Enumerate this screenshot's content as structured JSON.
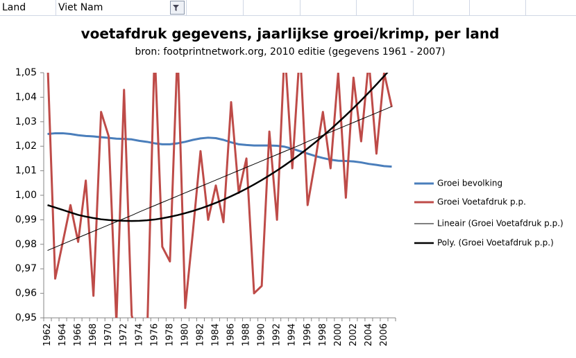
{
  "filter": {
    "label": "Land",
    "value": "Viet Nam"
  },
  "chart_data": {
    "type": "line",
    "title": "voetafdruk gegevens, jaarlijkse groei/krimp, per land",
    "subtitle": "bron: footprintnetwork.org, 2010 editie (gegevens 1961 - 2007)",
    "categories": [
      "1962",
      null,
      "1964",
      null,
      "1966",
      null,
      "1968",
      null,
      "1970",
      null,
      "1972",
      null,
      "1974",
      null,
      "1976",
      null,
      "1978",
      null,
      "1980",
      null,
      "1982",
      null,
      "1984",
      null,
      "1986",
      null,
      "1988",
      null,
      "1990",
      null,
      "1992",
      null,
      "1994",
      null,
      "1996",
      null,
      "1998",
      null,
      "2000",
      null,
      "2002",
      null,
      "2004",
      null,
      "2006",
      null
    ],
    "ylim": [
      0.95,
      1.05
    ],
    "yticks": [
      {
        "value": 0.95,
        "label": "0,95"
      },
      {
        "value": 0.96,
        "label": "0,96"
      },
      {
        "value": 0.97,
        "label": "0,97"
      },
      {
        "value": 0.98,
        "label": "0,98"
      },
      {
        "value": 0.99,
        "label": "0,99"
      },
      {
        "value": 1.0,
        "label": "1,00"
      },
      {
        "value": 1.01,
        "label": "1,01"
      },
      {
        "value": 1.02,
        "label": "1,02"
      },
      {
        "value": 1.03,
        "label": "1,03"
      },
      {
        "value": 1.04,
        "label": "1,04"
      },
      {
        "value": 1.05,
        "label": "1,05"
      }
    ],
    "grid": false,
    "legend": "right",
    "series": [
      {
        "name": "Groei bevolking",
        "color": "#4a7ebb",
        "width": 3,
        "values": [
          1.025,
          1.0253,
          1.0253,
          1.025,
          1.0245,
          1.0242,
          1.024,
          1.0237,
          1.0234,
          1.0231,
          1.023,
          1.0228,
          1.0222,
          1.0218,
          1.0212,
          1.0208,
          1.0208,
          1.0212,
          1.0218,
          1.0226,
          1.0232,
          1.0235,
          1.0233,
          1.0226,
          1.0216,
          1.0208,
          1.0205,
          1.0203,
          1.0203,
          1.0203,
          1.0202,
          1.0198,
          1.019,
          1.018,
          1.017,
          1.016,
          1.0152,
          1.0145,
          1.0141,
          1.014,
          1.0138,
          1.0134,
          1.0128,
          1.0124,
          1.0119,
          1.0117
        ]
      },
      {
        "name": "Groei Voetafdruk p.p.",
        "color": "#be4b48",
        "width": 3,
        "values": [
          1.055,
          0.966,
          0.981,
          0.996,
          0.981,
          1.006,
          0.959,
          1.034,
          1.024,
          0.948,
          1.043,
          0.951,
          0.94,
          0.94,
          1.06,
          0.979,
          0.973,
          1.06,
          0.954,
          0.985,
          1.018,
          0.99,
          1.004,
          0.989,
          1.038,
          1.001,
          1.015,
          0.96,
          0.963,
          1.026,
          0.99,
          1.06,
          1.011,
          1.06,
          0.996,
          1.014,
          1.034,
          1.011,
          1.05,
          0.999,
          1.048,
          1.022,
          1.055,
          1.017,
          1.05,
          1.036
        ]
      },
      {
        "name": "Lineair (Groei Voetafdruk p.p.)",
        "color": "#000000",
        "width": 1,
        "values": [
          0.9775,
          0.9788,
          0.9801,
          0.9814,
          0.9827,
          0.984,
          0.9853,
          0.9866,
          0.9879,
          0.9892,
          0.9905,
          0.9918,
          0.9932,
          0.9945,
          0.9958,
          0.9971,
          0.9984,
          0.9997,
          1.001,
          1.0023,
          1.0036,
          1.0049,
          1.0062,
          1.0075,
          1.0088,
          1.0101,
          1.0114,
          1.0127,
          1.014,
          1.0153,
          1.0166,
          1.0179,
          1.0192,
          1.0205,
          1.0219,
          1.0232,
          1.0245,
          1.0258,
          1.0271,
          1.0284,
          1.0297,
          1.031,
          1.0323,
          1.0336,
          1.0349,
          1.0362
        ]
      },
      {
        "name": "Poly. (Groei Voetafdruk p.p.)",
        "color": "#000000",
        "width": 2.5,
        "values": [
          0.996,
          0.995,
          0.994,
          0.993,
          0.992,
          0.9913,
          0.9907,
          0.9902,
          0.9899,
          0.9897,
          0.9896,
          0.9895,
          0.9896,
          0.9898,
          0.9901,
          0.9906,
          0.9912,
          0.9919,
          0.9927,
          0.9936,
          0.9946,
          0.9957,
          0.9969,
          0.9982,
          0.9996,
          1.0011,
          1.0027,
          1.0044,
          1.0062,
          1.0081,
          1.0101,
          1.0122,
          1.0144,
          1.0167,
          1.0191,
          1.0216,
          1.0242,
          1.0269,
          1.0297,
          1.0326,
          1.0356,
          1.0387,
          1.0419,
          1.0452,
          1.0486,
          1.0521
        ]
      }
    ]
  }
}
